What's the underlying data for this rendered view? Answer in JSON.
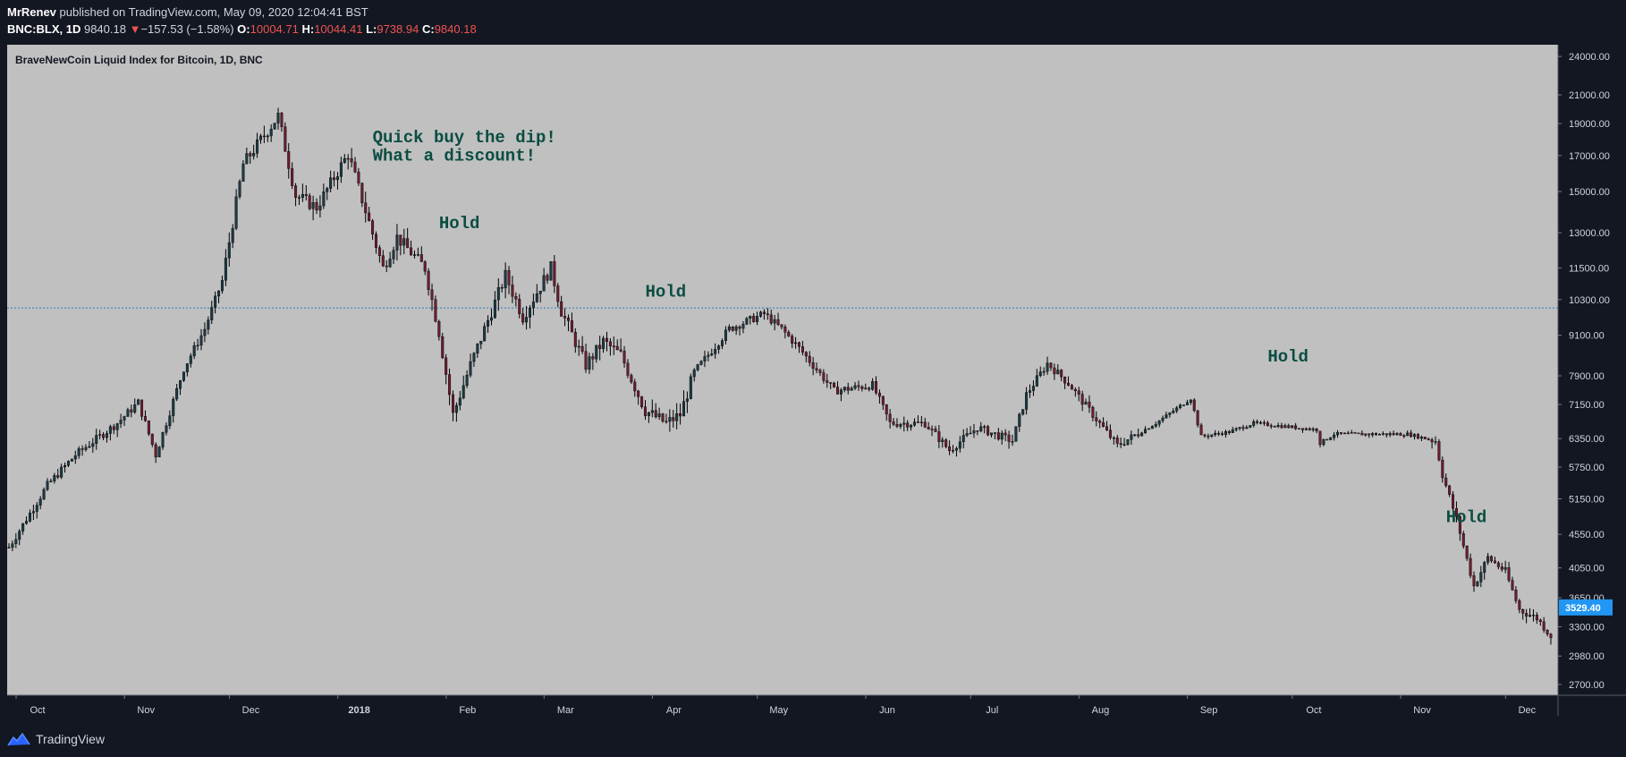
{
  "header": {
    "author": "MrRenev",
    "published_text": "published on TradingView.com, May 09, 2020 12:04:41 BST",
    "symbol": "BNC:BLX, 1D",
    "last": "9840.18",
    "change_arrow": "▼",
    "change": "−157.53 (−1.58%)",
    "o_label": "O:",
    "o": "10004.71",
    "h_label": "H:",
    "h": "10044.41",
    "l_label": "L:",
    "l": "9738.94",
    "c_label": "C:",
    "c": "9840.18"
  },
  "legend_title": "BraveNewCoin Liquid Index for Bitcoin, 1D, BNC",
  "footer": {
    "brand": "TradingView",
    "logo_icon": "tradingview-logo-icon"
  },
  "colors": {
    "background": "#131722",
    "plot_background": "#c0c0c0",
    "up": "#1a3a44",
    "down": "#6b1d2e",
    "annotation": "#0b4d42",
    "price_line": "#2f7bbf",
    "price_tag": "#2196f3"
  },
  "chart_data": {
    "type": "candlestick",
    "title": "BraveNewCoin Liquid Index for Bitcoin, 1D, BNC",
    "y_scale": "log",
    "ylim": [
      2600,
      25000
    ],
    "y_ticks": [
      "24000.00",
      "21000.00",
      "19000.00",
      "17000.00",
      "15000.00",
      "13000.00",
      "11500.00",
      "10300.00",
      "9100.00",
      "7900.00",
      "7150.00",
      "6350.00",
      "5750.00",
      "5150.00",
      "4550.00",
      "4050.00",
      "3650.00",
      "3300.00",
      "2980.00",
      "2700.00"
    ],
    "x_labels": [
      "Oct",
      "Nov",
      "Dec",
      "2018",
      "Feb",
      "Mar",
      "Apr",
      "May",
      "Jun",
      "Jul",
      "Aug",
      "Sep",
      "Oct",
      "Nov",
      "Dec"
    ],
    "x_range": [
      "2017-10-01",
      "2018-12-16"
    ],
    "horizontal_line_value": 10004.71,
    "last_price_tag": "3529.40",
    "annotations": [
      {
        "text": "Quick buy the dip!",
        "date": "2018-01-13",
        "price": 17800
      },
      {
        "text": "What a discount!",
        "date": "2018-01-13",
        "price": 16700
      },
      {
        "text": "Hold",
        "date": "2018-02-01",
        "price": 13200
      },
      {
        "text": "Hold",
        "date": "2018-04-01",
        "price": 10400
      },
      {
        "text": "Hold",
        "date": "2018-09-26",
        "price": 8300
      },
      {
        "text": "Hold",
        "date": "2018-11-16",
        "price": 4750
      }
    ],
    "close_anchors": [
      [
        "2017-10-01",
        4350
      ],
      [
        "2017-10-12",
        5400
      ],
      [
        "2017-10-20",
        6000
      ],
      [
        "2017-11-01",
        6700
      ],
      [
        "2017-11-07",
        7200
      ],
      [
        "2017-11-12",
        6000
      ],
      [
        "2017-11-20",
        8100
      ],
      [
        "2017-11-26",
        9300
      ],
      [
        "2017-12-01",
        11000
      ],
      [
        "2017-12-07",
        16500
      ],
      [
        "2017-12-17",
        19500
      ],
      [
        "2017-12-22",
        14800
      ],
      [
        "2017-12-28",
        14200
      ],
      [
        "2018-01-06",
        17100
      ],
      [
        "2018-01-16",
        11500
      ],
      [
        "2018-01-20",
        12800
      ],
      [
        "2018-01-28",
        11500
      ],
      [
        "2018-02-01",
        9200
      ],
      [
        "2018-02-05",
        6900
      ],
      [
        "2018-02-10",
        8200
      ],
      [
        "2018-02-20",
        11200
      ],
      [
        "2018-02-25",
        9700
      ],
      [
        "2018-03-05",
        11500
      ],
      [
        "2018-03-08",
        9900
      ],
      [
        "2018-03-15",
        8200
      ],
      [
        "2018-03-20",
        8900
      ],
      [
        "2018-03-25",
        8500
      ],
      [
        "2018-04-01",
        7000
      ],
      [
        "2018-04-07",
        6700
      ],
      [
        "2018-04-11",
        6900
      ],
      [
        "2018-04-15",
        8000
      ],
      [
        "2018-04-25",
        9300
      ],
      [
        "2018-05-05",
        9800
      ],
      [
        "2018-05-10",
        9300
      ],
      [
        "2018-05-15",
        8700
      ],
      [
        "2018-05-25",
        7500
      ],
      [
        "2018-06-05",
        7650
      ],
      [
        "2018-06-10",
        6700
      ],
      [
        "2018-06-20",
        6700
      ],
      [
        "2018-06-27",
        6100
      ],
      [
        "2018-07-05",
        6600
      ],
      [
        "2018-07-15",
        6300
      ],
      [
        "2018-07-19",
        7400
      ],
      [
        "2018-07-25",
        8250
      ],
      [
        "2018-07-31",
        7700
      ],
      [
        "2018-08-07",
        6900
      ],
      [
        "2018-08-14",
        6200
      ],
      [
        "2018-08-25",
        6700
      ],
      [
        "2018-09-04",
        7300
      ],
      [
        "2018-09-07",
        6400
      ],
      [
        "2018-09-15",
        6500
      ],
      [
        "2018-09-22",
        6700
      ],
      [
        "2018-10-10",
        6550
      ],
      [
        "2018-10-11",
        6250
      ],
      [
        "2018-10-15",
        6450
      ],
      [
        "2018-11-05",
        6450
      ],
      [
        "2018-11-13",
        6300
      ],
      [
        "2018-11-15",
        5600
      ],
      [
        "2018-11-19",
        4800
      ],
      [
        "2018-11-24",
        3800
      ],
      [
        "2018-11-28",
        4200
      ],
      [
        "2018-12-03",
        4000
      ],
      [
        "2018-12-07",
        3500
      ],
      [
        "2018-12-12",
        3400
      ],
      [
        "2018-12-16",
        3200
      ]
    ]
  }
}
